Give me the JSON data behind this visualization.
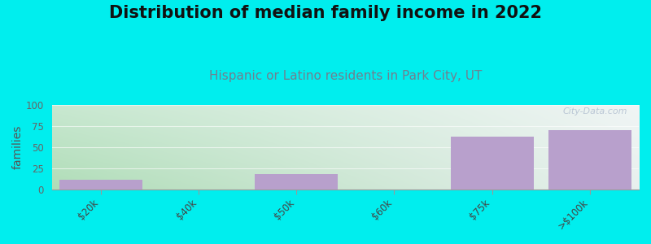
{
  "title": "Distribution of median family income in 2022",
  "subtitle": "Hispanic or Latino residents in Park City, UT",
  "ylabel": "families",
  "categories": [
    "$20k",
    "$40k",
    "$50k",
    "$60k",
    "$75k",
    ">$100k"
  ],
  "values": [
    11,
    0,
    18,
    0,
    62,
    70
  ],
  "bar_color": "#b8a0cc",
  "bg_outer": "#00eeee",
  "grad_top_left": "#c8e8d0",
  "grad_top_right": "#f0f5f5",
  "grad_bottom_left": "#b0ddb8",
  "grad_bottom_right": "#e8f0ee",
  "ylim": [
    0,
    100
  ],
  "yticks": [
    0,
    25,
    50,
    75,
    100
  ],
  "watermark": "City-Data.com",
  "title_fontsize": 15,
  "subtitle_fontsize": 11,
  "ylabel_fontsize": 10
}
